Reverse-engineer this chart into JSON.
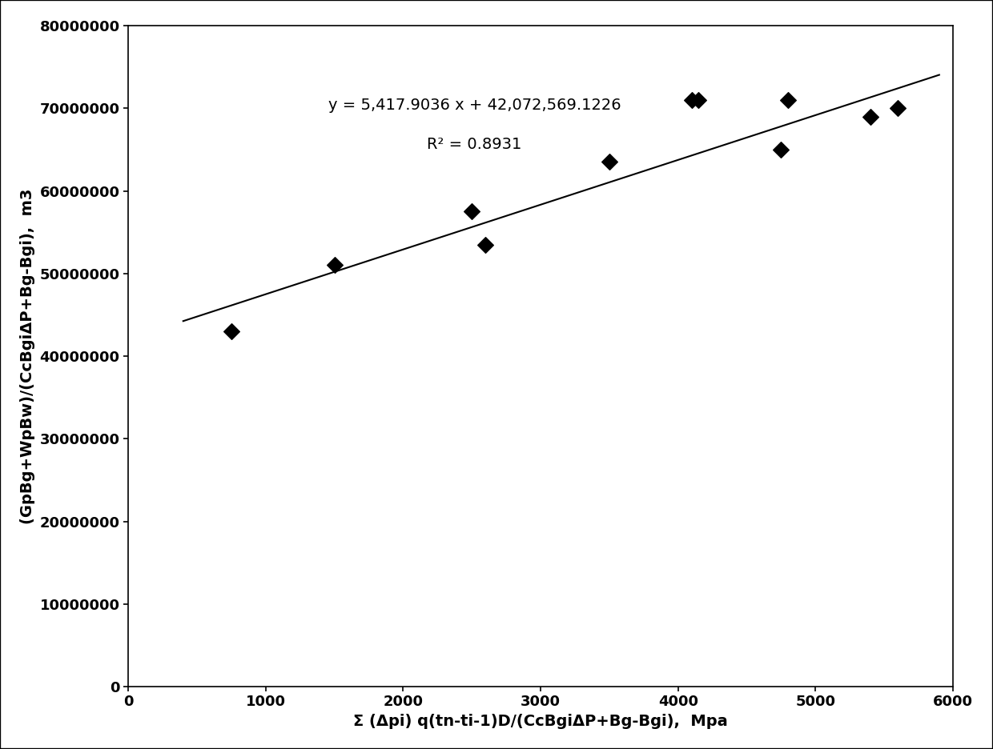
{
  "x_data": [
    750,
    1500,
    2500,
    2600,
    3500,
    4100,
    4150,
    4750,
    4800,
    5400,
    5600
  ],
  "y_data": [
    43000000,
    51000000,
    57500000,
    53500000,
    63500000,
    71000000,
    71000000,
    65000000,
    71000000,
    69000000,
    70000000
  ],
  "slope": 5417.9036,
  "intercept": 42072569.1226,
  "r_squared": 0.8931,
  "equation_text": "y = 5,417.9036 x + 42,072,569.1226",
  "r2_text": "R² = 0.8931",
  "xlabel": "Σ (Δpi) q(tn-ti-1)D/(CcBgiΔP+Bg-Bgi),  Mpa",
  "ylabel": "(GpBg+WpBw)/(CcBgiΔP+Bg-Bgi),  m3",
  "xlim": [
    0,
    6000
  ],
  "ylim": [
    0,
    80000000
  ],
  "xticks": [
    0,
    1000,
    2000,
    3000,
    4000,
    5000,
    6000
  ],
  "yticks": [
    0,
    10000000,
    20000000,
    30000000,
    40000000,
    50000000,
    60000000,
    70000000,
    80000000
  ],
  "line_x_start": 400,
  "line_x_end": 5900,
  "marker_color": "black",
  "line_color": "black",
  "bg_color": "white",
  "figsize": [
    12.4,
    9.36
  ],
  "dpi": 100,
  "border": true
}
